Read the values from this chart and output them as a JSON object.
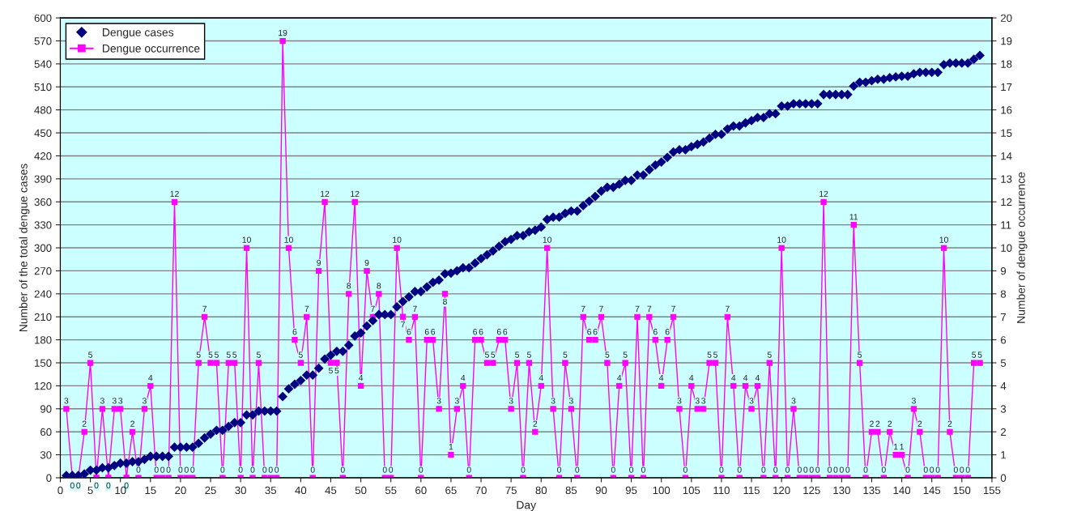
{
  "chart_data": {
    "type": "line",
    "xlabel": "Day",
    "ylabel": "Number of the total dengue cases",
    "y2label": "Number of dengue occurrence",
    "x": [
      1,
      2,
      3,
      4,
      5,
      6,
      7,
      8,
      9,
      10,
      11,
      12,
      13,
      14,
      15,
      16,
      17,
      18,
      19,
      20,
      21,
      22,
      23,
      24,
      25,
      26,
      27,
      28,
      29,
      30,
      31,
      32,
      33,
      34,
      35,
      36,
      37,
      38,
      39,
      40,
      41,
      42,
      43,
      44,
      45,
      46,
      47,
      48,
      49,
      50,
      51,
      52,
      53,
      54,
      55,
      56,
      57,
      58,
      59,
      60,
      61,
      62,
      63,
      64,
      65,
      66,
      67,
      68,
      69,
      70,
      71,
      72,
      73,
      74,
      75,
      76,
      77,
      78,
      79,
      80,
      81,
      82,
      83,
      84,
      85,
      86,
      87,
      88,
      89,
      90,
      91,
      92,
      93,
      94,
      95,
      96,
      97,
      98,
      99,
      100,
      101,
      102,
      103,
      104,
      105,
      106,
      107,
      108,
      109,
      110,
      111,
      112,
      113,
      114,
      115,
      116,
      117,
      118,
      119,
      120,
      121,
      122,
      123,
      124,
      125,
      126,
      127,
      128,
      129,
      130,
      131,
      132,
      133,
      134,
      135,
      136,
      137,
      138,
      139,
      140,
      141,
      142,
      143,
      144,
      145,
      146,
      147,
      148,
      149,
      150,
      151,
      152,
      153
    ],
    "series": [
      {
        "name": "Dengue cases",
        "type": "scatter",
        "marker": "diamond",
        "color": "#000080",
        "values": [
          3,
          3,
          3,
          5,
          10,
          10,
          13,
          13,
          16,
          19,
          19,
          21,
          21,
          24,
          28,
          28,
          28,
          28,
          40,
          40,
          40,
          40,
          45,
          52,
          57,
          62,
          62,
          67,
          72,
          72,
          82,
          82,
          87,
          87,
          87,
          87,
          106,
          116,
          122,
          127,
          134,
          134,
          143,
          155,
          160,
          165,
          165,
          173,
          185,
          189,
          198,
          205,
          213,
          213,
          213,
          223,
          230,
          236,
          243,
          243,
          249,
          255,
          258,
          266,
          267,
          270,
          274,
          274,
          280,
          286,
          291,
          296,
          302,
          308,
          311,
          316,
          316,
          321,
          323,
          327,
          337,
          340,
          340,
          345,
          348,
          348,
          355,
          361,
          367,
          374,
          379,
          379,
          383,
          388,
          388,
          395,
          395,
          402,
          408,
          412,
          418,
          425,
          428,
          428,
          432,
          435,
          438,
          443,
          448,
          448,
          455,
          459,
          459,
          463,
          466,
          470,
          470,
          475,
          475,
          485,
          485,
          488,
          488,
          488,
          488,
          488,
          500,
          500,
          500,
          500,
          500,
          511,
          516,
          516,
          518,
          520,
          520,
          522,
          523,
          524,
          524,
          527,
          529,
          529,
          529,
          529,
          539,
          541,
          541,
          541,
          541,
          546,
          551
        ]
      },
      {
        "name": "Dengue occurrence",
        "marker": "square",
        "axis": "y2",
        "data_labels": true,
        "color": "#ff00ff",
        "values": [
          3,
          0,
          0,
          2,
          5,
          0,
          3,
          0,
          3,
          3,
          0,
          2,
          0,
          3,
          4,
          0,
          0,
          0,
          12,
          0,
          0,
          0,
          5,
          7,
          5,
          5,
          0,
          5,
          5,
          0,
          10,
          0,
          5,
          0,
          0,
          0,
          19,
          10,
          6,
          5,
          7,
          0,
          9,
          12,
          5,
          5,
          0,
          8,
          12,
          4,
          9,
          7,
          8,
          0,
          0,
          10,
          7,
          6,
          7,
          0,
          6,
          6,
          3,
          8,
          1,
          3,
          4,
          0,
          6,
          6,
          5,
          5,
          6,
          6,
          3,
          5,
          0,
          5,
          2,
          4,
          10,
          3,
          0,
          5,
          3,
          0,
          7,
          6,
          6,
          7,
          5,
          0,
          4,
          5,
          0,
          7,
          0,
          7,
          6,
          4,
          6,
          7,
          3,
          0,
          4,
          3,
          3,
          5,
          5,
          0,
          7,
          4,
          0,
          4,
          3,
          4,
          0,
          5,
          0,
          10,
          0,
          3,
          0,
          0,
          0,
          0,
          12,
          0,
          0,
          0,
          0,
          11,
          5,
          0,
          2,
          2,
          0,
          2,
          1,
          1,
          0,
          3,
          2,
          0,
          0,
          0,
          10,
          2,
          0,
          0,
          0,
          5,
          5
        ]
      }
    ],
    "xlim": [
      0,
      155
    ],
    "xticks": [
      0,
      5,
      10,
      15,
      20,
      25,
      30,
      35,
      40,
      45,
      50,
      55,
      60,
      65,
      70,
      75,
      80,
      85,
      90,
      95,
      100,
      105,
      110,
      115,
      120,
      125,
      130,
      135,
      140,
      145,
      150,
      155
    ],
    "ylim": [
      0,
      600
    ],
    "yticks": [
      0,
      30,
      60,
      90,
      120,
      150,
      180,
      210,
      240,
      270,
      300,
      330,
      360,
      390,
      420,
      450,
      480,
      510,
      540,
      570,
      600
    ],
    "y2lim": [
      0,
      20
    ],
    "y2ticks": [
      0,
      1,
      2,
      3,
      4,
      5,
      6,
      7,
      8,
      9,
      10,
      11,
      12,
      13,
      14,
      15,
      16,
      17,
      18,
      19,
      20
    ],
    "grid": "y",
    "legend": "top left"
  }
}
